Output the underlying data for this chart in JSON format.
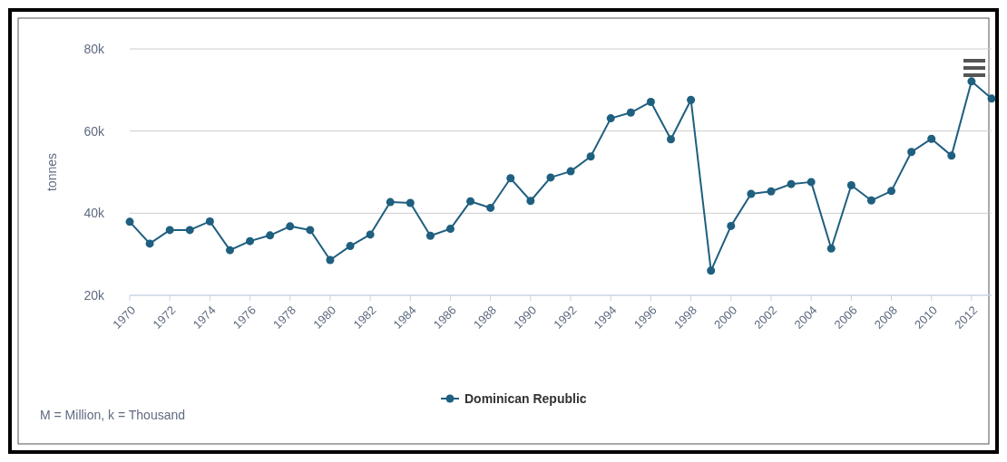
{
  "chart_data": {
    "type": "line",
    "ylabel": "tonnes",
    "annotations": [
      "M = Million, k = Thousand"
    ],
    "x": [
      1970,
      1971,
      1972,
      1973,
      1974,
      1975,
      1976,
      1977,
      1978,
      1979,
      1980,
      1981,
      1982,
      1983,
      1984,
      1985,
      1986,
      1987,
      1988,
      1989,
      1990,
      1991,
      1992,
      1993,
      1994,
      1995,
      1996,
      1997,
      1998,
      1999,
      2000,
      2001,
      2002,
      2003,
      2004,
      2005,
      2006,
      2007,
      2008,
      2009,
      2010,
      2011,
      2012,
      2013
    ],
    "series": [
      {
        "name": "Dominican Republic",
        "color": "#1f5f7f",
        "values": [
          37900,
          32600,
          35900,
          35900,
          38000,
          31000,
          33200,
          34600,
          36800,
          35900,
          28600,
          32000,
          34800,
          42700,
          42500,
          34500,
          36200,
          42900,
          41300,
          48500,
          43000,
          48700,
          50200,
          53800,
          63100,
          64500,
          67100,
          58000,
          67600,
          26000,
          36900,
          44700,
          45300,
          47100,
          47600,
          31400,
          46800,
          43100,
          45400,
          54900,
          58100,
          54000,
          72100,
          67900
        ]
      }
    ],
    "xlim": [
      1970,
      2013
    ],
    "xticks": [
      1970,
      1972,
      1974,
      1976,
      1978,
      1980,
      1982,
      1984,
      1986,
      1988,
      1990,
      1992,
      1994,
      1996,
      1998,
      2000,
      2002,
      2004,
      2006,
      2008,
      2010,
      2012
    ],
    "ylim": [
      20000,
      80000
    ],
    "yticks": [
      {
        "value": 20000,
        "label": "20k"
      },
      {
        "value": 40000,
        "label": "40k"
      },
      {
        "value": 60000,
        "label": "60k"
      },
      {
        "value": 80000,
        "label": "80k"
      }
    ],
    "grid": "y",
    "legend": "bottom",
    "marker": "circle",
    "line_style": "solid"
  }
}
